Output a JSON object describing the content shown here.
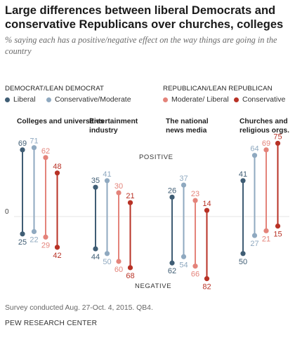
{
  "title": "Large differences between liberal Democrats and conservative Republicans over churches, colleges",
  "subtitle": "% saying each has a positive/negative effect on the way things are going in the country",
  "legend": {
    "dem_group": "DEMOCRAT/LEAN DEMOCRAT",
    "rep_group": "REPUBLICAN/LEAN REPUBLICAN",
    "items": [
      "Liberal",
      "Conservative/Moderate",
      "Moderate/ Liberal",
      "Conservative"
    ]
  },
  "colors": {
    "Liberal": "#3f5d74",
    "Conservative/Moderate": "#8fa9c0",
    "Moderate/ Liberal": "#e4837a",
    "Conservative": "#b83226"
  },
  "note": "Survey conducted Aug. 27-Oct. 4, 2015. QB4.",
  "source": "PEW RESEARCH CENTER",
  "chart_data": {
    "type": "dumbbell",
    "categories": [
      "Colleges and universities",
      "Entertainment industry",
      "The national news media",
      "Churches and religious orgs."
    ],
    "zero_label": "0",
    "positive_label": "POSITIVE",
    "negative_label": "NEGATIVE",
    "series": [
      {
        "name": "Liberal",
        "positive": [
          69,
          35,
          26,
          41
        ],
        "negative": [
          25,
          44,
          62,
          50
        ]
      },
      {
        "name": "Conservative/Moderate",
        "positive": [
          71,
          41,
          37,
          64
        ],
        "negative": [
          22,
          50,
          54,
          27
        ]
      },
      {
        "name": "Moderate/ Liberal",
        "positive": [
          62,
          30,
          23,
          69
        ],
        "negative": [
          29,
          60,
          66,
          21
        ]
      },
      {
        "name": "Conservative",
        "positive": [
          48,
          21,
          14,
          75
        ],
        "negative": [
          42,
          68,
          82,
          15
        ]
      }
    ]
  }
}
